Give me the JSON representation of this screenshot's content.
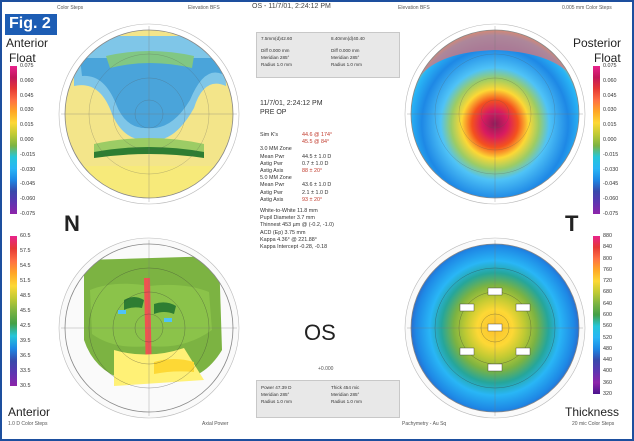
{
  "header": {
    "figure_label": "Fig. 2",
    "top_title": "OS - 11/7/01, 2:24:12 PM"
  },
  "panels": {
    "top_left": {
      "label_line1": "Anterior",
      "label_line2": "Float",
      "mode": "Elevation BFS",
      "scale_note": "Color Steps"
    },
    "top_right": {
      "label_line1": "Posterior",
      "label_line2": "Float",
      "mode": "Elevation BFS",
      "scale_note": "0.005 mm Color Steps"
    },
    "bottom_left": {
      "label": "Anterior",
      "mode": "Axial Power",
      "scale_note": "1.0 D Color Steps"
    },
    "bottom_right": {
      "label": "Thickness",
      "mode": "Pachymetry - Au Sq",
      "scale_note": "20 mic Color Steps"
    }
  },
  "orientation": {
    "nasal": "N",
    "temporal": "T"
  },
  "eye_label": "OS",
  "scales": {
    "anterior_float": [
      "0.075",
      "0.060",
      "0.045",
      "0.030",
      "0.015",
      "0.000",
      "-0.015",
      "-0.030",
      "-0.045",
      "-0.060",
      "-0.075"
    ],
    "posterior_float": [
      "0.075",
      "0.060",
      "0.045",
      "0.030",
      "0.015",
      "0.000",
      "-0.015",
      "-0.030",
      "-0.045",
      "-0.060",
      "-0.075"
    ],
    "axial_power": [
      "60.5",
      "57.5",
      "54.5",
      "51.5",
      "48.5",
      "45.5",
      "42.5",
      "39.5",
      "36.5",
      "33.5",
      "30.5"
    ],
    "thickness": [
      "880",
      "840",
      "800",
      "760",
      "720",
      "680",
      "640",
      "600",
      "560",
      "520",
      "480",
      "440",
      "400",
      "360",
      "320"
    ]
  },
  "info_boxes": {
    "top_left": {
      "col1": "7.5mm(d)42.60",
      "col2": "8.40mm(d)40.40",
      "rows": [
        "Diff  0.000 mm",
        "Meridian  285°",
        "Radius  1.0 mm"
      ],
      "rows2": [
        "Diff  0.000 mm",
        "Meridian  285°",
        "Radius  1.0 mm"
      ]
    },
    "bottom_left": {
      "rows": [
        "Power  47.39 D",
        "Meridian  285°",
        "Radius  1.0 mm"
      ],
      "rows2": [
        "Thick  454 mic",
        "Meridian  285°",
        "Radius  1.0 mm"
      ]
    }
  },
  "exam": {
    "datetime": "11/7/01, 2:24:12 PM",
    "note": "PRE OP",
    "rows": [
      {
        "k": "Sim K's",
        "v": "44.6 @ 174°",
        "red": true
      },
      {
        "k": "",
        "v": "45.5 @ 84°",
        "red": true
      },
      {
        "k": "3.0 MM Zone",
        "v": "",
        "red": false
      },
      {
        "k": "Mean Pwr",
        "v": "44.5  ± 1.0 D",
        "red": false
      },
      {
        "k": "Astig Pwr",
        "v": "0.7  ± 1.0 D",
        "red": false
      },
      {
        "k": "Astig Axis",
        "v": "88  ± 20°",
        "red": true
      },
      {
        "k": "5.0 MM Zone",
        "v": "",
        "red": false
      },
      {
        "k": "Mean Pwr",
        "v": "43.6  ± 1.0 D",
        "red": false
      },
      {
        "k": "Astig Pwr",
        "v": "2.1  ± 1.0 D",
        "red": false
      },
      {
        "k": "Astig Axis",
        "v": "93  ± 20°",
        "red": true
      }
    ],
    "extra": [
      "White-to-White  11.8 mm",
      "Pupil Diameter  3.7 mm",
      "Thinnest  453 µm @ (-0.2, -1.0)",
      "ACD (Ep)  3.75 mm",
      "Kappa  4.36° @ 221.88°",
      "Kappa Intercept  -0.28, -0.18"
    ]
  },
  "center_small": "+0.000"
}
